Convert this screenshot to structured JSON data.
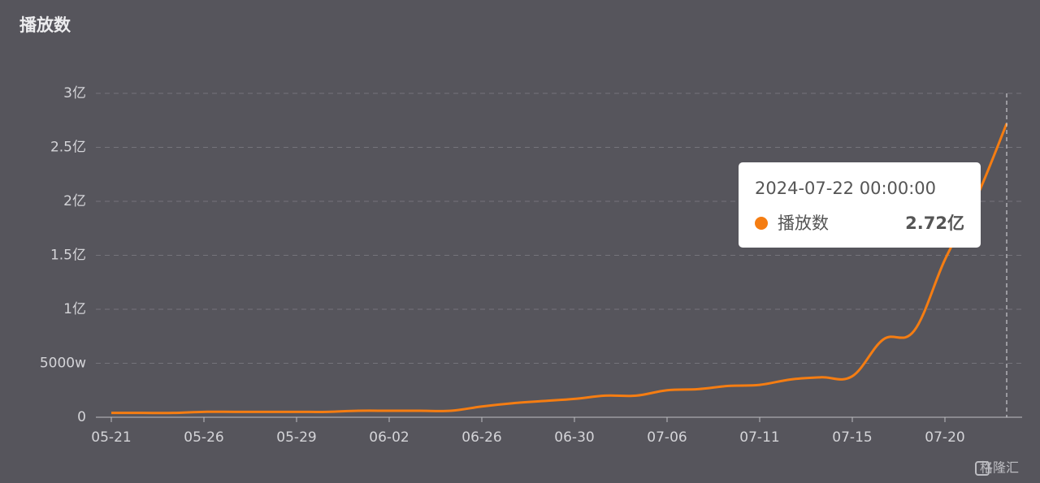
{
  "chart_data": {
    "type": "line",
    "title": "播放数",
    "categories": [
      "05-21",
      null,
      null,
      "05-26",
      null,
      null,
      "05-29",
      null,
      null,
      "06-02",
      null,
      null,
      "06-26",
      null,
      null,
      "06-30",
      null,
      null,
      "07-06",
      null,
      null,
      "07-11",
      null,
      null,
      "07-15",
      null,
      null,
      "07-20",
      null,
      null
    ],
    "series": [
      {
        "name": "播放数",
        "color": "#f57d12",
        "values": [
          0.04,
          0.04,
          0.04,
          0.05,
          0.05,
          0.05,
          0.05,
          0.05,
          0.06,
          0.06,
          0.06,
          0.06,
          0.1,
          0.13,
          0.15,
          0.17,
          0.2,
          0.2,
          0.25,
          0.26,
          0.29,
          0.3,
          0.35,
          0.37,
          0.38,
          0.72,
          0.8,
          1.46,
          2.02,
          2.72
        ],
        "value_labels": [
          null,
          null,
          null,
          null,
          null,
          null,
          null,
          null,
          null,
          null,
          null,
          null,
          null,
          null,
          null,
          null,
          null,
          null,
          null,
          null,
          null,
          null,
          null,
          null,
          null,
          null,
          null,
          null,
          null,
          "2.72亿"
        ]
      }
    ],
    "ylim": [
      0,
      3
    ],
    "yticks": [
      0,
      {
        "value": 0.5,
        "label": "5000w"
      },
      {
        "value": 1,
        "label": "1亿"
      },
      {
        "value": 1.5,
        "label": "1.5亿"
      },
      {
        "value": 2,
        "label": "2亿"
      },
      {
        "value": 2.5,
        "label": "2.5亿"
      },
      {
        "value": 3,
        "label": "3亿"
      }
    ],
    "grid": true,
    "tooltip_title": "2024-07-22 00:00:00",
    "watermark": "格隆汇"
  }
}
